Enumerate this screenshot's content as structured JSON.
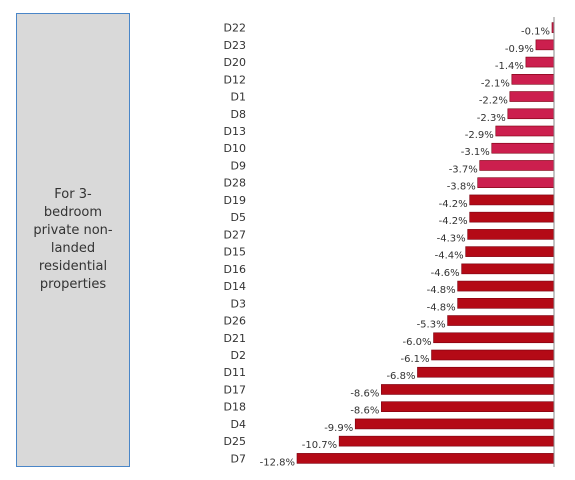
{
  "note": {
    "text": "For 3-\nbedroom\nprivate non-\nlanded\nresidential\nproperties"
  },
  "chart_data": {
    "type": "bar",
    "orientation": "horizontal",
    "categories": [
      "D22",
      "D23",
      "D20",
      "D12",
      "D1",
      "D8",
      "D13",
      "D10",
      "D9",
      "D28",
      "D19",
      "D5",
      "D27",
      "D15",
      "D16",
      "D14",
      "D3",
      "D26",
      "D21",
      "D2",
      "D11",
      "D17",
      "D18",
      "D4",
      "D25",
      "D7"
    ],
    "values": [
      -0.1,
      -0.9,
      -1.4,
      -2.1,
      -2.2,
      -2.3,
      -2.9,
      -3.1,
      -3.7,
      -3.8,
      -4.2,
      -4.2,
      -4.3,
      -4.4,
      -4.6,
      -4.8,
      -4.8,
      -5.3,
      -6.0,
      -6.1,
      -6.8,
      -8.6,
      -8.6,
      -9.9,
      -10.7,
      -12.8
    ],
    "labels": [
      "-0.1%",
      "-0.9%",
      "-1.4%",
      "-2.1%",
      "-2.2%",
      "-2.3%",
      "-2.9%",
      "-3.1%",
      "-3.7%",
      "-3.8%",
      "-4.2%",
      "-4.2%",
      "-4.3%",
      "-4.4%",
      "-4.6%",
      "-4.8%",
      "-4.8%",
      "-5.3%",
      "-6.0%",
      "-6.1%",
      "-6.8%",
      "-8.6%",
      "-8.6%",
      "-9.9%",
      "-10.7%",
      "-12.8%"
    ],
    "xlim": [
      -12.8,
      0
    ],
    "colors": {
      "bar_light": "#cc1f4e",
      "bar_dark": "#b40a16",
      "bar_edge": "#7a0010",
      "axis": "#888888"
    },
    "grid": false,
    "legend": "none"
  }
}
